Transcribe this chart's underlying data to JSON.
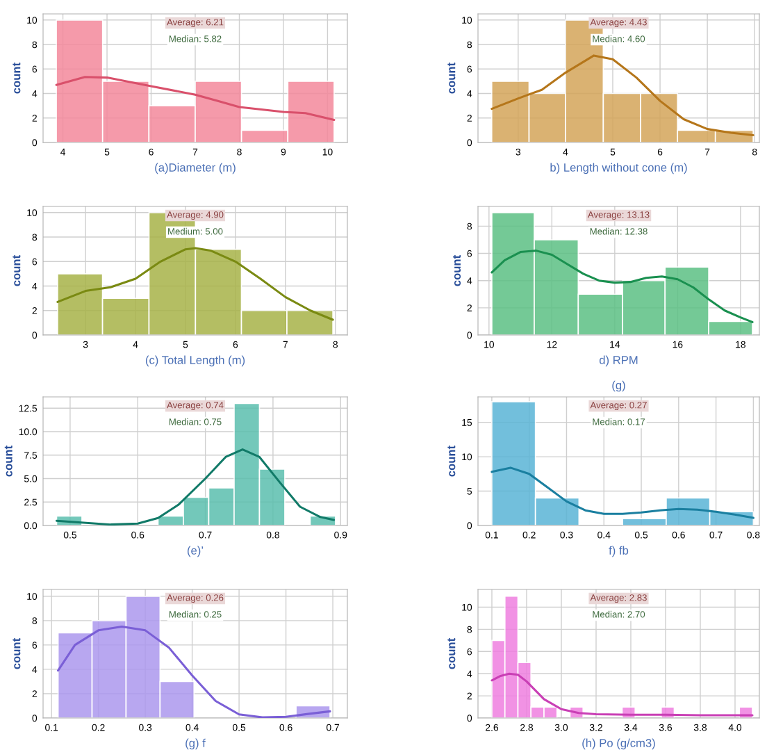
{
  "chart_data": [
    {
      "type": "histogram",
      "xlabel": "(a)Diameter (m)",
      "ylabel": "count",
      "annotations": [
        "Average: 6.21",
        "Median: 5.82"
      ],
      "xlim": [
        3.55,
        10.45
      ],
      "xticks": [
        4,
        5,
        6,
        7,
        8,
        9,
        10
      ],
      "ylim": [
        0,
        10.5
      ],
      "yticks": [
        0,
        2,
        4,
        6,
        8,
        10
      ],
      "grid": true,
      "series": [
        {
          "bins": [
            3.85,
            4.9,
            5.95,
            7.0,
            8.05,
            9.1,
            10.15
          ],
          "values": [
            10,
            5,
            3,
            5,
            1,
            5
          ],
          "color": "#f4899c"
        },
        {
          "type": "line",
          "x": [
            3.85,
            4.5,
            5,
            6,
            7,
            7.5,
            8,
            9,
            9.5,
            10.15
          ],
          "values": [
            4.7,
            5.35,
            5.3,
            4.6,
            3.9,
            3.4,
            2.9,
            2.5,
            2.4,
            1.85
          ],
          "color": "#d9506b"
        }
      ]
    },
    {
      "type": "histogram",
      "xlabel": "b) Length without cone (m)",
      "ylabel": "count",
      "annotations": [
        "Average: 4.43",
        "Median: 4.60"
      ],
      "xlim": [
        2.15,
        8.1
      ],
      "xticks": [
        3,
        4,
        5,
        6,
        7,
        8
      ],
      "ylim": [
        0,
        10.5
      ],
      "yticks": [
        0,
        2,
        4,
        6,
        8,
        10
      ],
      "grid": true,
      "series": [
        {
          "bins": [
            2.44,
            3.23,
            4.0,
            4.8,
            5.59,
            6.37,
            7.17,
            7.97
          ],
          "values": [
            5,
            4,
            10,
            4,
            4,
            1,
            1
          ],
          "color": "#d4a55a"
        },
        {
          "type": "line",
          "x": [
            2.44,
            3,
            3.5,
            4,
            4.6,
            5,
            5.5,
            6,
            6.5,
            7,
            7.5,
            7.97
          ],
          "values": [
            2.75,
            3.6,
            4.3,
            5.7,
            7.1,
            6.8,
            5.3,
            3.4,
            1.9,
            1.1,
            0.8,
            0.6
          ],
          "color": "#b5761a"
        }
      ]
    },
    {
      "type": "histogram",
      "xlabel": "(c) Total Length (m)",
      "ylabel": "count",
      "annotations": [
        "Average: 4.90",
        "Medium: 5.00"
      ],
      "xlim": [
        2.15,
        8.24
      ],
      "xticks": [
        3,
        4,
        5,
        6,
        7,
        8
      ],
      "ylim": [
        0,
        10.5
      ],
      "yticks": [
        0,
        2,
        4,
        6,
        8,
        10
      ],
      "grid": true,
      "series": [
        {
          "bins": [
            2.44,
            3.34,
            4.27,
            5.2,
            6.12,
            7.03,
            7.95
          ],
          "values": [
            5,
            3,
            10,
            7,
            2,
            2
          ],
          "color": "#a8b348"
        },
        {
          "type": "line",
          "x": [
            2.44,
            3,
            3.5,
            4,
            4.5,
            5,
            5.2,
            5.5,
            6,
            6.5,
            7,
            7.5,
            7.95
          ],
          "values": [
            2.7,
            3.6,
            3.9,
            4.6,
            6.0,
            7.0,
            7.1,
            6.9,
            6.0,
            4.6,
            3.1,
            2.0,
            1.25
          ],
          "color": "#7a8a12"
        }
      ]
    },
    {
      "type": "histogram",
      "xlabel": "d) RPM",
      "ylabel": "count",
      "annotations": [
        "Average: 13.13",
        "Median: 12.38"
      ],
      "xlim": [
        9.65,
        18.6
      ],
      "xticks": [
        10,
        12,
        14,
        16,
        18
      ],
      "ylim": [
        0,
        9.45
      ],
      "yticks": [
        0,
        2,
        4,
        6,
        8
      ],
      "grid": true,
      "series": [
        {
          "bins": [
            10.09,
            11.44,
            12.84,
            14.25,
            15.6,
            16.99,
            18.38
          ],
          "values": [
            9,
            7,
            3,
            4,
            5,
            1
          ],
          "color": "#5cc084"
        },
        {
          "type": "line",
          "x": [
            10.09,
            10.5,
            11,
            11.5,
            12,
            12.5,
            13,
            13.5,
            14,
            14.5,
            15,
            15.5,
            16,
            16.5,
            17,
            17.5,
            18,
            18.38
          ],
          "values": [
            4.6,
            5.5,
            6.1,
            6.2,
            5.9,
            5.2,
            4.5,
            4.0,
            3.85,
            3.9,
            4.2,
            4.3,
            4.1,
            3.5,
            2.6,
            1.8,
            1.3,
            0.95
          ],
          "color": "#1a9050"
        }
      ]
    },
    {
      "type": "histogram",
      "xlabel": "(e)’",
      "ylabel": "count",
      "annotations": [
        "Average: 0.74",
        "Median: 0.75"
      ],
      "xlim": [
        0.46,
        0.91
      ],
      "xticks": [
        0.5,
        0.6,
        0.7,
        0.8,
        0.9
      ],
      "ylim": [
        0,
        13.7
      ],
      "yticks": [
        {
          "value": 0,
          "label": "0.0"
        },
        {
          "value": 2.5,
          "label": "2.5"
        },
        {
          "value": 5,
          "label": "5.0"
        },
        {
          "value": 7.5,
          "label": "7.5"
        },
        {
          "value": 10,
          "label": "10.0"
        },
        {
          "value": 12.5,
          "label": "12.5"
        }
      ],
      "grid": true,
      "series": [
        {
          "bins": [
            0.48,
            0.5175,
            0.555,
            0.5925,
            0.63,
            0.6675,
            0.705,
            0.7425,
            0.78,
            0.8175,
            0.855,
            0.8925
          ],
          "values": [
            1,
            0,
            0,
            0,
            1,
            3,
            4,
            13,
            6,
            0,
            1
          ],
          "color": "#5bbfae"
        },
        {
          "type": "line",
          "x": [
            0.48,
            0.52,
            0.56,
            0.6,
            0.63,
            0.66,
            0.7,
            0.73,
            0.755,
            0.78,
            0.81,
            0.84,
            0.87,
            0.89
          ],
          "values": [
            0.5,
            0.3,
            0.1,
            0.2,
            0.8,
            2.2,
            5.0,
            7.3,
            8.1,
            7.3,
            4.6,
            2.0,
            0.9,
            0.6
          ],
          "color": "#117a68"
        }
      ]
    },
    {
      "type": "histogram",
      "title": "(g)",
      "xlabel": "f) fb",
      "ylabel": "count",
      "annotations": [
        "Average: 0.27",
        "Median: 0.17"
      ],
      "xlim": [
        0.063,
        0.816
      ],
      "xticks": [
        0.1,
        0.2,
        0.3,
        0.4,
        0.5,
        0.6,
        0.7,
        0.8
      ],
      "ylim": [
        0,
        18.7
      ],
      "yticks": [
        0,
        5,
        10,
        15
      ],
      "grid": true,
      "series": [
        {
          "bins": [
            0.1,
            0.2167,
            0.3333,
            0.45,
            0.5667,
            0.6833,
            0.8
          ],
          "values": [
            18,
            4,
            0,
            1,
            4,
            2
          ],
          "color": "#5ab4d6"
        },
        {
          "type": "line",
          "x": [
            0.1,
            0.15,
            0.2,
            0.25,
            0.3,
            0.35,
            0.4,
            0.45,
            0.5,
            0.55,
            0.6,
            0.65,
            0.7,
            0.75,
            0.8
          ],
          "values": [
            7.8,
            8.4,
            7.5,
            5.5,
            3.5,
            2.2,
            1.7,
            1.7,
            1.9,
            2.2,
            2.4,
            2.3,
            2.0,
            1.6,
            1.1
          ],
          "color": "#1a7fa0"
        }
      ]
    },
    {
      "type": "histogram",
      "xlabel": "(g) f",
      "ylabel": "count",
      "annotations": [
        "Average: 0.26",
        "Median: 0.25"
      ],
      "xlim": [
        0.082,
        0.731
      ],
      "xticks": [
        0.1,
        0.2,
        0.3,
        0.4,
        0.5,
        0.6,
        0.7
      ],
      "ylim": [
        0,
        10.56
      ],
      "yticks": [
        0,
        2,
        4,
        6,
        8,
        10
      ],
      "grid": true,
      "series": [
        {
          "bins": [
            0.114,
            0.1865,
            0.259,
            0.3315,
            0.404,
            0.4765,
            0.549,
            0.6215,
            0.694
          ],
          "values": [
            7,
            8,
            10,
            3,
            0,
            0,
            0,
            1
          ],
          "color": "#ac98ee"
        },
        {
          "type": "line",
          "x": [
            0.114,
            0.15,
            0.2,
            0.25,
            0.3,
            0.35,
            0.4,
            0.45,
            0.5,
            0.55,
            0.6,
            0.65,
            0.694
          ],
          "values": [
            3.9,
            6.0,
            7.2,
            7.5,
            7.2,
            5.8,
            3.5,
            1.4,
            0.3,
            0.05,
            0.1,
            0.35,
            0.55
          ],
          "color": "#7a5fd6"
        }
      ]
    },
    {
      "type": "histogram",
      "xlabel": "(h) Po (g/cm3)",
      "ylabel": "count",
      "annotations": [
        "Average: 2.83",
        "Median: 2.70"
      ],
      "xlim": [
        2.52,
        4.14
      ],
      "xticks": [
        {
          "value": 2.6,
          "label": "2.6"
        },
        {
          "value": 2.8,
          "label": "2.8"
        },
        {
          "value": 3.0,
          "label": "3.0"
        },
        {
          "value": 3.2,
          "label": "3.2"
        },
        {
          "value": 3.4,
          "label": "3.4"
        },
        {
          "value": 3.6,
          "label": "3.6"
        },
        {
          "value": 3.8,
          "label": "3.8"
        },
        {
          "value": 4.0,
          "label": "4.0"
        }
      ],
      "ylim": [
        0,
        11.6
      ],
      "yticks": [
        0,
        2,
        4,
        6,
        8,
        10
      ],
      "grid": true,
      "series": [
        {
          "bins": [
            2.6,
            2.675,
            2.75,
            2.825,
            2.9,
            2.975,
            3.05,
            3.125,
            3.2,
            3.275,
            3.35,
            3.425,
            3.5,
            3.575,
            3.65,
            3.725,
            3.8,
            3.875,
            3.95,
            4.025,
            4.1
          ],
          "values": [
            7,
            11,
            5,
            1,
            1,
            0,
            1,
            0,
            0,
            0,
            1,
            0,
            0,
            1,
            0,
            0,
            0,
            0,
            0,
            1
          ],
          "color": "#ef7fe0"
        },
        {
          "type": "line",
          "x": [
            2.6,
            2.65,
            2.7,
            2.75,
            2.8,
            2.85,
            2.9,
            3.0,
            3.1,
            3.2,
            3.4,
            3.6,
            3.8,
            4.0,
            4.1
          ],
          "values": [
            3.4,
            3.8,
            4.0,
            3.9,
            3.3,
            2.5,
            1.7,
            0.8,
            0.45,
            0.35,
            0.3,
            0.3,
            0.25,
            0.25,
            0.25
          ],
          "color": "#c93fb5"
        }
      ]
    }
  ]
}
